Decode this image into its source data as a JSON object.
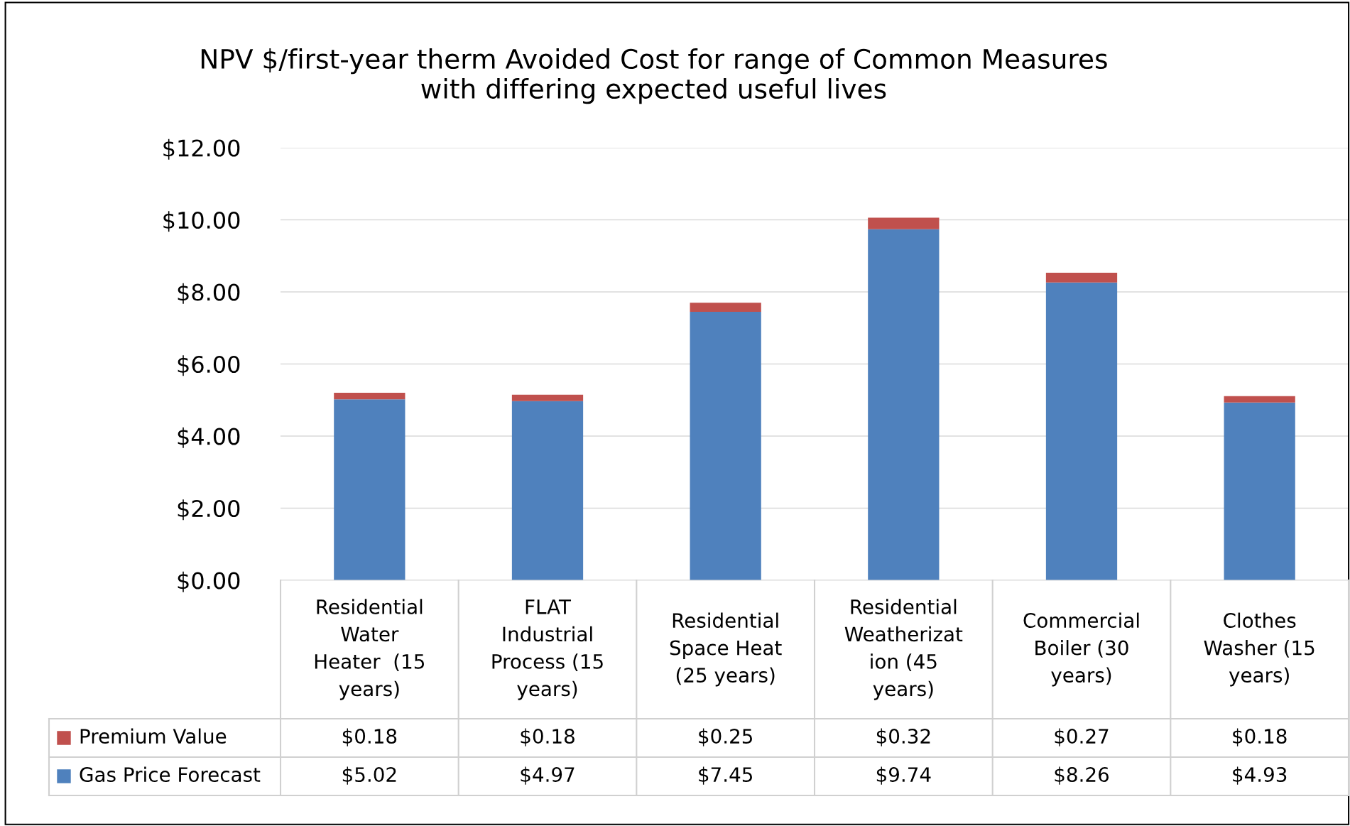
{
  "chart_data": {
    "type": "bar",
    "stacked": true,
    "title": "NPV $/first-year therm Avoided Cost for range of Common Measures\nwith differing expected useful lives",
    "categories": [
      "Residential\nWater\nHeater  (15\nyears)",
      "FLAT\nIndustrial\nProcess (15\nyears)",
      "Residential\nSpace Heat\n(25 years)",
      "Residential\nWeatherizat\nion (45\nyears)",
      "Commercial\nBoiler (30\nyears)",
      "Clothes\nWasher (15\nyears)"
    ],
    "series": [
      {
        "name": "Gas Price Forecast",
        "color": "#4f81bd",
        "values": [
          5.02,
          4.97,
          7.45,
          9.74,
          8.26,
          4.93
        ],
        "value_labels": [
          "$5.02",
          "$4.97",
          "$7.45",
          "$9.74",
          "$8.26",
          "$4.93"
        ]
      },
      {
        "name": "Premium Value",
        "color": "#c0504d",
        "values": [
          0.18,
          0.18,
          0.25,
          0.32,
          0.27,
          0.18
        ],
        "value_labels": [
          "$0.18",
          "$0.18",
          "$0.25",
          "$0.32",
          "$0.27",
          "$0.18"
        ]
      }
    ],
    "ylim": [
      0,
      12
    ],
    "yticks": [
      {
        "value": 0,
        "label": "$0.00"
      },
      {
        "value": 2,
        "label": "$2.00"
      },
      {
        "value": 4,
        "label": "$4.00"
      },
      {
        "value": 6,
        "label": "$6.00"
      },
      {
        "value": 8,
        "label": "$8.00"
      },
      {
        "value": 10,
        "label": "$10.00"
      },
      {
        "value": 12,
        "label": "$12.00"
      }
    ],
    "grid": "y",
    "legend": "bottom"
  }
}
